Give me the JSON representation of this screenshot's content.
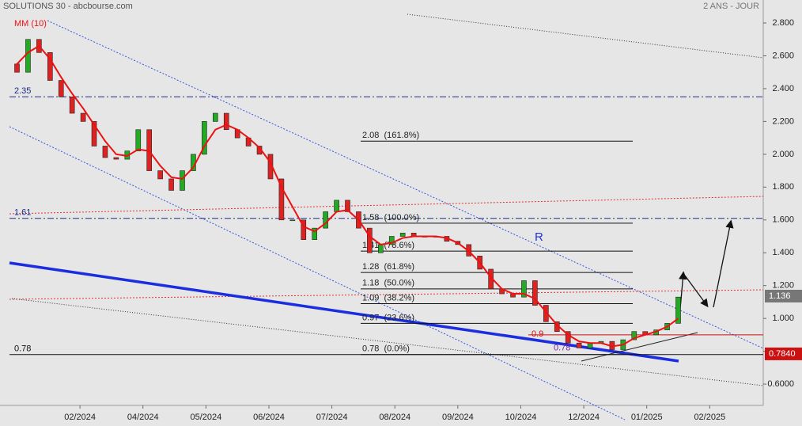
{
  "chart_data": {
    "type": "candlestick",
    "title": "SOLUTIONS 30 - abcbourse.com",
    "subtitle": "2 ANS - JOUR",
    "x": [
      0,
      0.175,
      0.35,
      0.525,
      0.7,
      0.875,
      1.05,
      1.225,
      1.4,
      1.575,
      1.75,
      1.925,
      2.1,
      2.275,
      2.45,
      2.625,
      2.8,
      2.975,
      3.15,
      3.325,
      3.5,
      3.675,
      3.85,
      4.025,
      4.2,
      4.375,
      4.55,
      4.725,
      4.9,
      5.075,
      5.25,
      5.425,
      5.6,
      5.775,
      5.95,
      6.125,
      6.3,
      6.475,
      6.65,
      6.825,
      7,
      7.175,
      7.35,
      7.525,
      7.7,
      7.875,
      8.05,
      8.225,
      8.4,
      8.575,
      8.75,
      8.925,
      9.1,
      9.275,
      9.45,
      9.625,
      9.8,
      9.975,
      10.15,
      10.325,
      10.5
    ],
    "open": [
      2.55,
      2.5,
      2.7,
      2.62,
      2.45,
      2.35,
      2.25,
      2.2,
      2.05,
      1.98,
      1.97,
      2.02,
      2.15,
      1.9,
      1.85,
      1.78,
      1.9,
      2.0,
      2.2,
      2.25,
      2.15,
      2.1,
      2.05,
      2.0,
      1.85,
      1.6,
      1.6,
      1.48,
      1.55,
      1.65,
      1.72,
      1.65,
      1.55,
      1.4,
      1.45,
      1.5,
      1.52,
      1.5,
      1.5,
      1.5,
      1.47,
      1.45,
      1.38,
      1.3,
      1.18,
      1.15,
      1.13,
      1.23,
      1.08,
      0.98,
      0.92,
      0.85,
      0.82,
      0.85,
      0.86,
      0.81,
      0.87,
      0.92,
      0.9,
      0.93,
      0.97
    ],
    "close": [
      2.5,
      2.7,
      2.62,
      2.45,
      2.35,
      2.25,
      2.2,
      2.05,
      1.98,
      1.97,
      2.02,
      2.15,
      1.9,
      1.85,
      1.78,
      1.9,
      2.0,
      2.2,
      2.25,
      2.15,
      2.1,
      2.05,
      2.0,
      1.85,
      1.6,
      1.6,
      1.48,
      1.55,
      1.65,
      1.72,
      1.65,
      1.55,
      1.4,
      1.45,
      1.5,
      1.52,
      1.5,
      1.5,
      1.5,
      1.47,
      1.45,
      1.38,
      1.3,
      1.18,
      1.15,
      1.13,
      1.23,
      1.08,
      0.98,
      0.92,
      0.85,
      0.82,
      0.85,
      0.86,
      0.81,
      0.87,
      0.92,
      0.9,
      0.93,
      0.97,
      1.13
    ],
    "up_color": "#22aa22",
    "down_color": "#dd2222",
    "series": [
      {
        "name": "MM (10)",
        "color": "#ee1111",
        "values": [
          2.55,
          2.62,
          2.66,
          2.58,
          2.47,
          2.37,
          2.28,
          2.18,
          2.08,
          2.0,
          1.99,
          2.03,
          2.02,
          1.93,
          1.86,
          1.85,
          1.92,
          2.05,
          2.15,
          2.18,
          2.15,
          2.1,
          2.04,
          1.95,
          1.8,
          1.68,
          1.56,
          1.53,
          1.58,
          1.65,
          1.66,
          1.6,
          1.5,
          1.45,
          1.46,
          1.49,
          1.5,
          1.5,
          1.5,
          1.49,
          1.46,
          1.41,
          1.34,
          1.25,
          1.18,
          1.15,
          1.15,
          1.12,
          1.04,
          0.96,
          0.9,
          0.86,
          0.85,
          0.85,
          0.83,
          0.84,
          0.88,
          0.9,
          0.92,
          0.95,
          1.0
        ]
      }
    ],
    "xlim": [
      -0.27,
      11.85
    ],
    "xticks": [
      {
        "value": 1,
        "label": "02/2024"
      },
      {
        "value": 2,
        "label": "04/2024"
      },
      {
        "value": 3,
        "label": "05/2024"
      },
      {
        "value": 4,
        "label": "06/2024"
      },
      {
        "value": 5,
        "label": "07/2024"
      },
      {
        "value": 6,
        "label": "08/2024"
      },
      {
        "value": 7,
        "label": "09/2024"
      },
      {
        "value": 8,
        "label": "10/2024"
      },
      {
        "value": 9,
        "label": "12/2024"
      },
      {
        "value": 10,
        "label": "01/2025"
      },
      {
        "value": 11,
        "label": "02/2025"
      }
    ],
    "ylim": [
      0.47,
      2.94
    ],
    "yticks": [
      {
        "value": 2.8,
        "label": "2.800"
      },
      {
        "value": 2.6,
        "label": "2.600"
      },
      {
        "value": 2.4,
        "label": "2.400"
      },
      {
        "value": 2.2,
        "label": "2.200"
      },
      {
        "value": 2.0,
        "label": "2.000"
      },
      {
        "value": 1.8,
        "label": "1.800"
      },
      {
        "value": 1.6,
        "label": "1.600"
      },
      {
        "value": 1.4,
        "label": "1.400"
      },
      {
        "value": 1.2,
        "label": "1.200"
      },
      {
        "value": 1.0,
        "label": "1.000"
      },
      {
        "value": 0.8,
        "label": "0.8000"
      },
      {
        "value": 0.6,
        "label": "0.6000"
      }
    ],
    "levels": [
      2.35,
      1.61,
      0.78
    ],
    "fibonacci": [
      {
        "value": 2.08,
        "label": "2.08  (161.8%)"
      },
      {
        "value": 1.58,
        "label": "1.58  (100.0%)"
      },
      {
        "value": 1.41,
        "label": "1.41  (78.6%)"
      },
      {
        "value": 1.28,
        "label": "1.28  (61.8%)"
      },
      {
        "value": 1.18,
        "label": "1.18  (50.0%)"
      },
      {
        "value": 1.09,
        "label": "1.09  (38.2%)"
      },
      {
        "value": 0.97,
        "label": "0.97  (23.6%)"
      },
      {
        "value": 0.78,
        "label": "0.78  (0.0%)"
      }
    ],
    "red_level": 0.9,
    "purple_level": 0.78,
    "last_price": 1.136,
    "ref_price": {
      "value": 0.784,
      "label": "0.7840"
    },
    "annotation": "R"
  }
}
